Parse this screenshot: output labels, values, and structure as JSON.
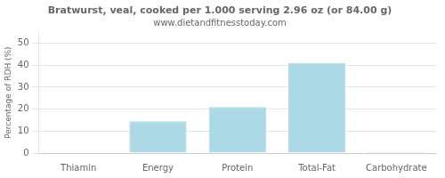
{
  "chart_data": {
    "type": "bar",
    "title": "Bratwurst, veal, cooked per 1.000 serving 2.96 oz (or 84.00 g)",
    "subtitle": "www.dietandfitnesstoday.com",
    "categories": [
      "Thiamin",
      "Energy",
      "Protein",
      "Total-Fat",
      "Carbohydrate"
    ],
    "values": [
      0,
      14.5,
      21,
      41,
      0.5
    ],
    "color": "#add8e6",
    "ylabel": "Percentage of RDH (%)",
    "ylim": [
      0,
      55
    ],
    "yticks": [
      0,
      10,
      20,
      30,
      40,
      50
    ],
    "grid": true
  }
}
